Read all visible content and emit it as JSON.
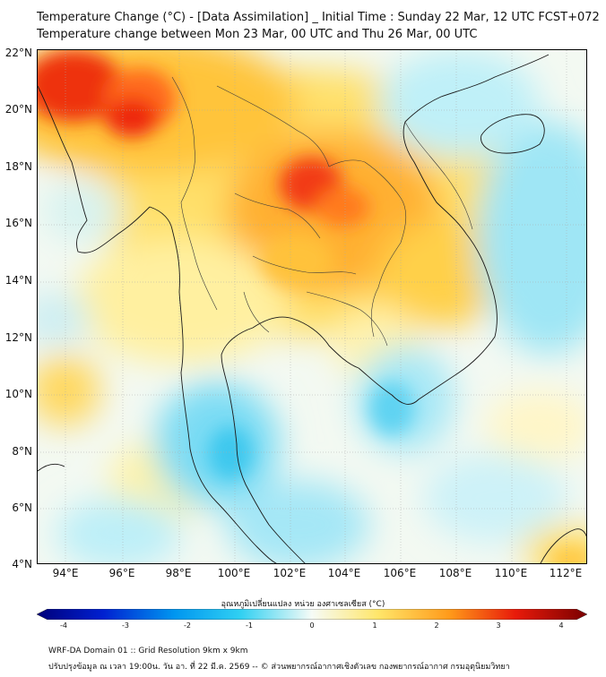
{
  "title_line1": "Temperature Change (°C) - [Data Assimilation] _ Initial Time : Sunday 22 Mar, 12 UTC FCST+072",
  "title_line2": "Temperature change between Mon 23 Mar, 00 UTC and Thu 26 Mar, 00 UTC",
  "map": {
    "lon_range": [
      93,
      113
    ],
    "lat_range": [
      4,
      22
    ],
    "y_labels": [
      "22°N",
      "20°N",
      "18°N",
      "16°N",
      "14°N",
      "12°N",
      "10°N",
      "8°N",
      "6°N",
      "4°N"
    ],
    "x_labels": [
      "94°E",
      "96°E",
      "98°E",
      "100°E",
      "102°E",
      "104°E",
      "106°E",
      "108°E",
      "110°E",
      "112°E"
    ],
    "field_description_colors": {
      "cold_strong": "#2fc4ef",
      "cold": "#8fe3f7",
      "neutral": "#f4faf5",
      "warm_light": "#fff3a8",
      "warm": "#ffd24a",
      "hot": "#ff9a1f",
      "very_hot": "#ee2a10"
    },
    "coastline_color": "#1a1a1a",
    "border_color": "#3a3a3a"
  },
  "colorbar": {
    "title": "อุณหภูมิเปลี่ยนแปลง หน่วย องศาเซลเซียส (°C)",
    "min": -4,
    "max": 4,
    "ticks": [
      "-4",
      "-3",
      "-2",
      "-1",
      "0",
      "1",
      "2",
      "3",
      "4"
    ]
  },
  "footer": {
    "line1": "WRF-DA Domain 01 :: Grid Resolution 9km x 9km",
    "line2": "ปรับปรุงข้อมูล ณ เวลา 19:00น. วัน อา. ที่ 22 มี.ค. 2569 -- © ส่วนพยากรณ์อากาศเชิงตัวเลข กองพยากรณ์อากาศ กรมอุตุนิยมวิทยา"
  }
}
